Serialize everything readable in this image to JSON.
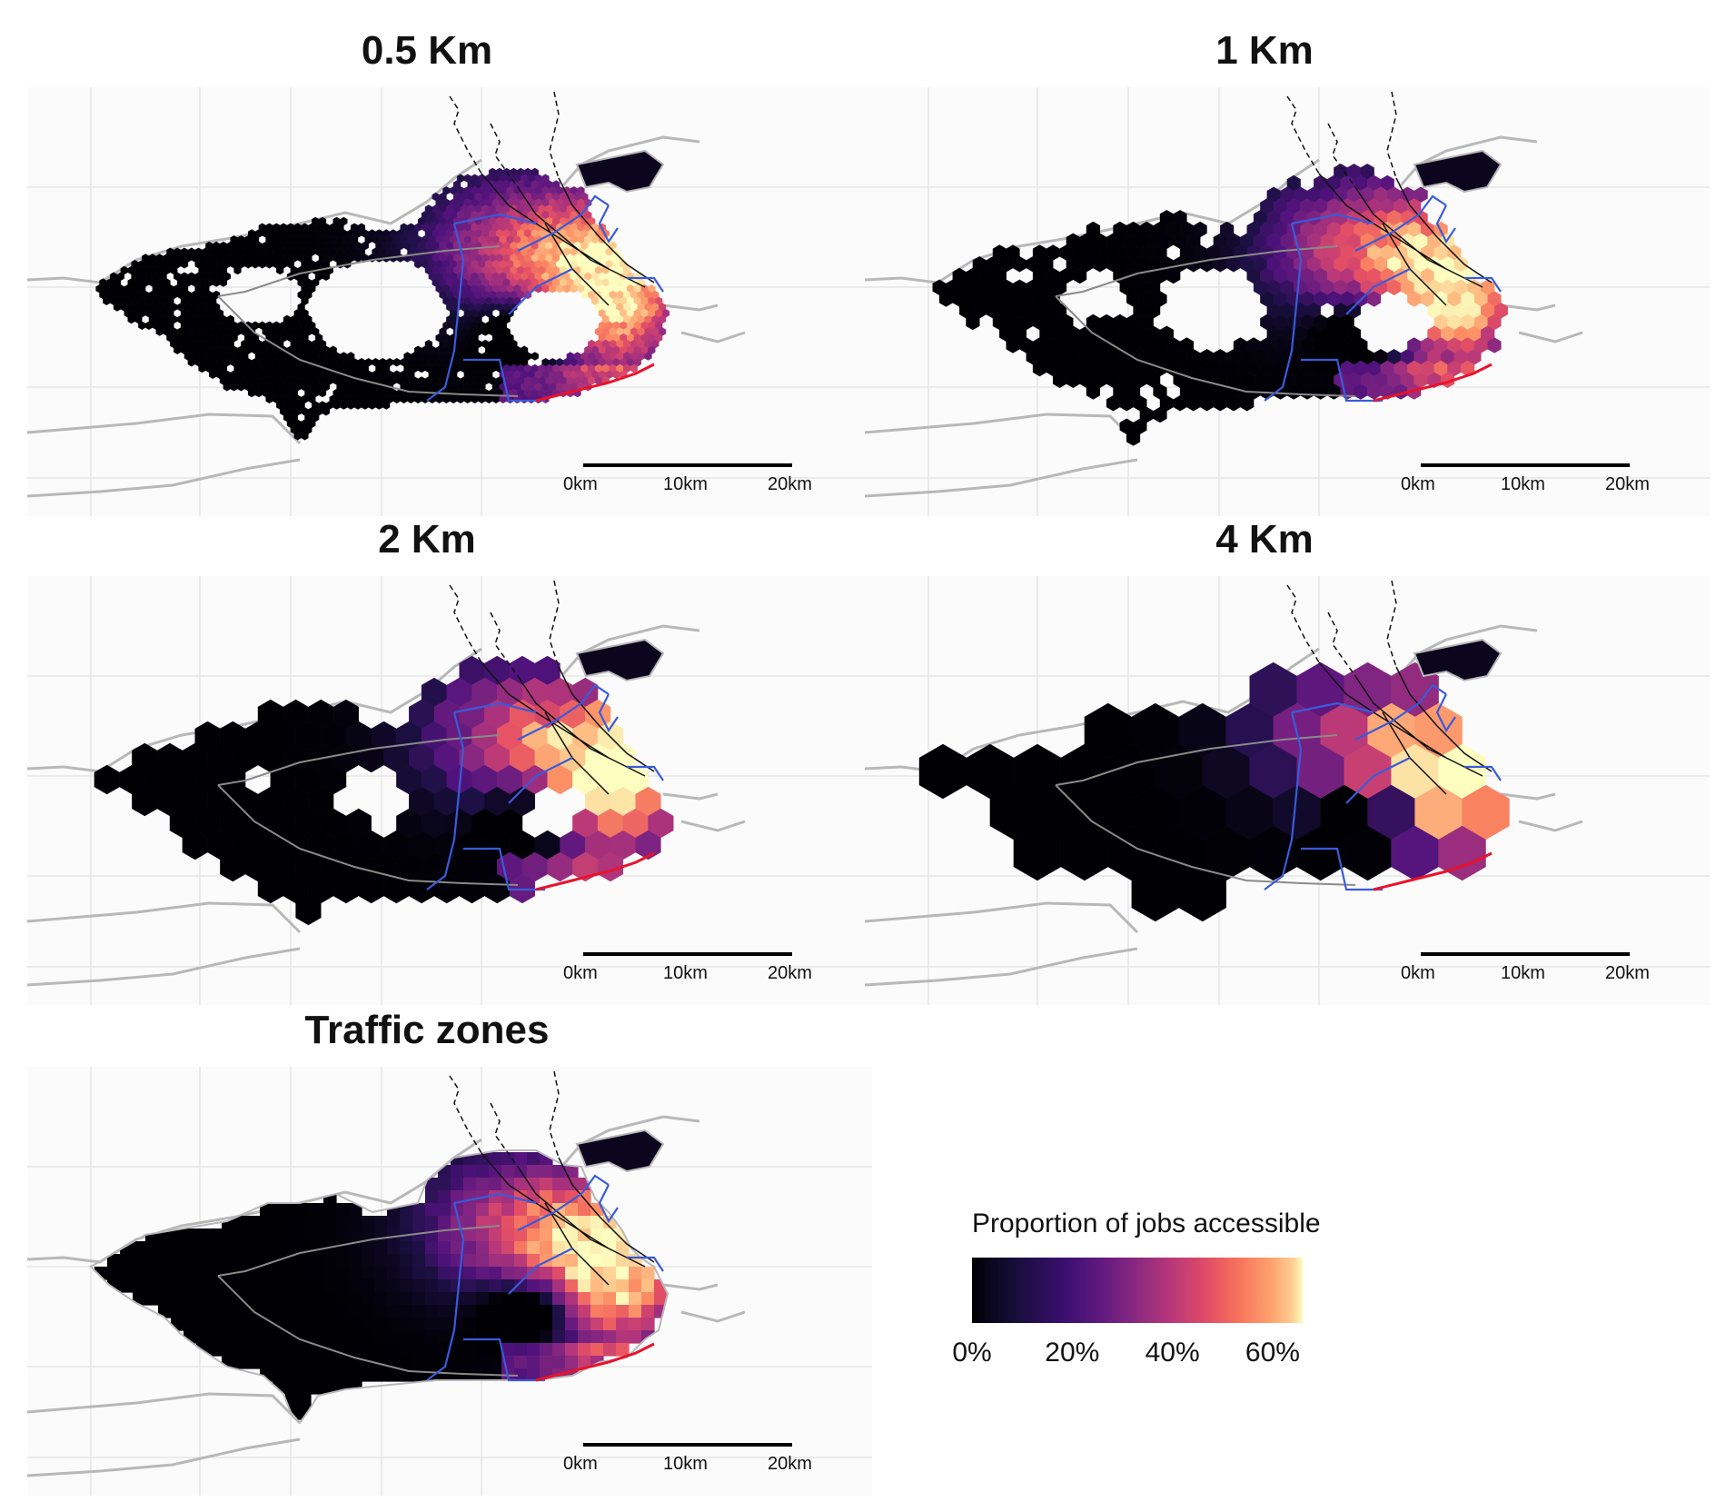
{
  "panels": [
    {
      "title": "0.5 Km",
      "resolution": "0.5km"
    },
    {
      "title": "1 Km",
      "resolution": "1km"
    },
    {
      "title": "2 Km",
      "resolution": "2km"
    },
    {
      "title": "4 Km",
      "resolution": "4km"
    },
    {
      "title": "Traffic zones",
      "resolution": "zones"
    }
  ],
  "scalebar": {
    "labels": [
      "0km",
      "10km",
      "20km"
    ]
  },
  "legend": {
    "title": "Proportion of jobs accessible",
    "tick_labels": [
      "0%",
      "20%",
      "40%",
      "60%"
    ],
    "tick_values": [
      0,
      20,
      40,
      60
    ],
    "range": [
      0,
      66
    ],
    "colormap": "magma",
    "colors": [
      "#000004",
      "#3b0f70",
      "#8c2981",
      "#de4968",
      "#fe9f6d",
      "#fcfdbf"
    ]
  },
  "colors": {
    "transit_blue": "#3a5bd9",
    "brt_red": "#e8132b",
    "rail_black": "#111111",
    "road_gray": "#8a8a8a",
    "coast_gray": "#b8b8b8",
    "grid_gray": "#e6e6e6"
  }
}
